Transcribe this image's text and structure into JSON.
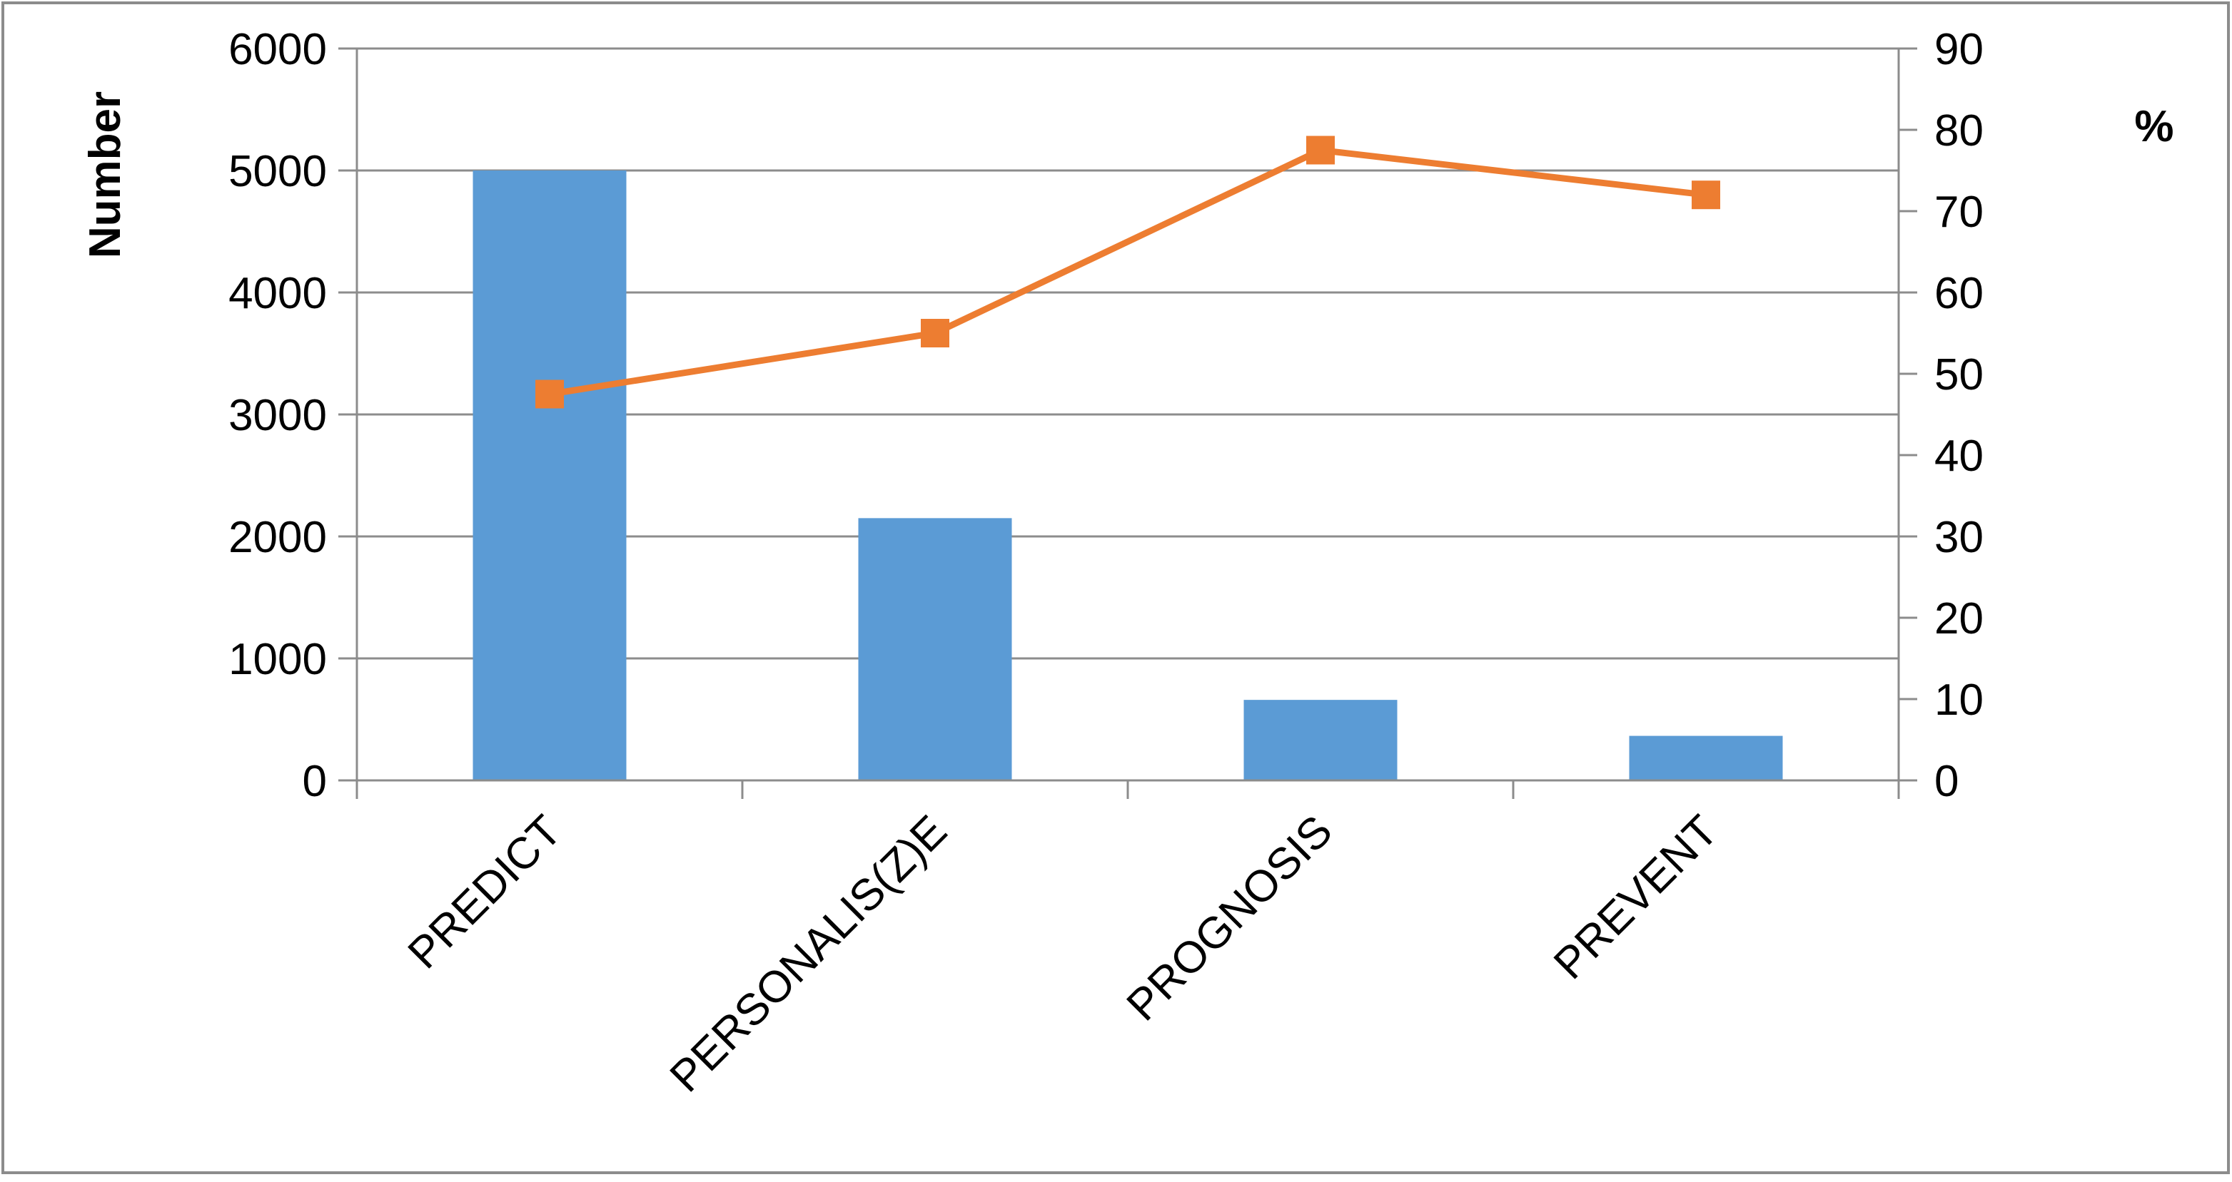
{
  "chart_data": {
    "type": "bar",
    "categories": [
      "PREDICT",
      "PERSONALIS(Z)E",
      "PROGNOSIS",
      "PREVENT"
    ],
    "series": [
      {
        "type": "bar",
        "axis": "left",
        "values": [
          5000,
          2150,
          660,
          365
        ],
        "color": "#5B9BD5"
      },
      {
        "type": "line",
        "axis": "right",
        "values": [
          47.5,
          55,
          77.5,
          72
        ],
        "color": "#ED7D31",
        "marker": "square"
      }
    ],
    "y_left": {
      "label": "Number",
      "range": [
        0,
        6000
      ],
      "ticks": [
        "0",
        "1000",
        "2000",
        "3000",
        "4000",
        "5000",
        "6000"
      ]
    },
    "y_right": {
      "label": "%",
      "range": [
        0,
        90
      ],
      "ticks": [
        "0",
        "10",
        "20",
        "30",
        "40",
        "50",
        "60",
        "70",
        "80",
        "90"
      ]
    },
    "grid": true,
    "legend": "none",
    "colors": {
      "gridline": "#8C8C8C",
      "axis": "#8C8C8C",
      "border": "#8C8C8C"
    }
  }
}
